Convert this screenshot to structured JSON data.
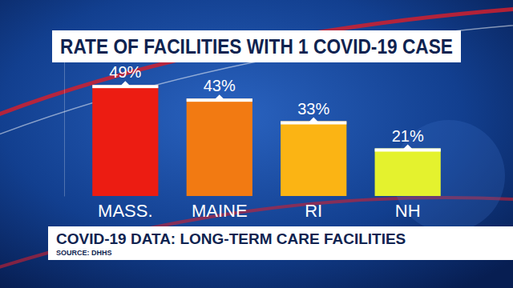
{
  "chart_data": {
    "type": "bar",
    "title": "RATE OF FACILITIES WITH 1 COVID-19 CASE",
    "subtitle": "COVID-19 DATA: LONG-TERM CARE FACILITIES",
    "annotations": [
      "SOURCE: DHHS"
    ],
    "categories": [
      "MASS.",
      "MAINE",
      "RI",
      "NH"
    ],
    "values": [
      49,
      43,
      33,
      21
    ],
    "value_labels": [
      "49%",
      "43%",
      "33%",
      "21%"
    ],
    "data_labels": true,
    "colors": [
      "#ec1c12",
      "#f27a12",
      "#fbb414",
      "#e4f22e"
    ],
    "ylim": [
      0,
      60
    ],
    "tick_labels": "x",
    "grid": false
  }
}
